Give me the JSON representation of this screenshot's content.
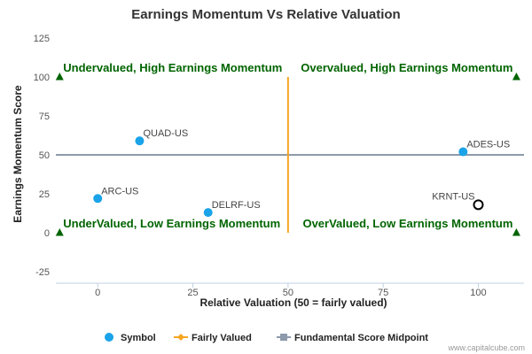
{
  "chart_data": {
    "type": "scatter",
    "title": "Earnings Momentum Vs Relative Valuation",
    "xlabel": "Relative Valuation (50 = fairly valued)",
    "ylabel": "Earnings Momentum Score",
    "xlim": [
      -11,
      112
    ],
    "ylim": [
      -25,
      125
    ],
    "xticks": [
      0,
      25,
      50,
      75,
      100
    ],
    "yticks": [
      -25,
      0,
      25,
      50,
      75,
      100,
      125
    ],
    "grid": false,
    "legend_position": "bottom",
    "points": [
      {
        "label": "QUAD-US",
        "x": 11,
        "y": 59,
        "type": "symbol"
      },
      {
        "label": "ARC-US",
        "x": 0,
        "y": 22,
        "type": "symbol"
      },
      {
        "label": "DELRF-US",
        "x": 29,
        "y": 13,
        "type": "symbol"
      },
      {
        "label": "ADES-US",
        "x": 96,
        "y": 52,
        "type": "symbol"
      },
      {
        "label": "KRNT-US",
        "x": 100,
        "y": 18,
        "type": "highlight"
      }
    ],
    "fairly_valued_x": 50,
    "midpoint_y": 50,
    "corner_markers": [
      {
        "x": -10,
        "y": 100
      },
      {
        "x": 110,
        "y": 100
      },
      {
        "x": -10,
        "y": 0
      },
      {
        "x": 110,
        "y": 0
      }
    ],
    "quadrant_labels": [
      {
        "text": "Undervalued, High Earnings Momentum",
        "x": -10,
        "y": 100,
        "anchor": "start"
      },
      {
        "text": "Overvalued, High Earnings Momentum",
        "x": 110,
        "y": 100,
        "anchor": "end"
      },
      {
        "text": "UnderValued, Low Earnings Momentum",
        "x": -10,
        "y": 0,
        "anchor": "start"
      },
      {
        "text": "OverValued, Low Earnings Momentum",
        "x": 110,
        "y": 0,
        "anchor": "end"
      }
    ],
    "legend": [
      {
        "name": "Symbol",
        "kind": "symbol"
      },
      {
        "name": "Fairly Valued",
        "kind": "fairly"
      },
      {
        "name": "Fundamental Score Midpoint",
        "kind": "midpoint"
      }
    ],
    "colors": {
      "symbol": "#1aa3e8",
      "fairly": "#f5a623",
      "midpoint": "#8c9aab",
      "quadrant": "#006400",
      "highlight_stroke": "#000000"
    }
  },
  "credit": "www.capitalcube.com"
}
